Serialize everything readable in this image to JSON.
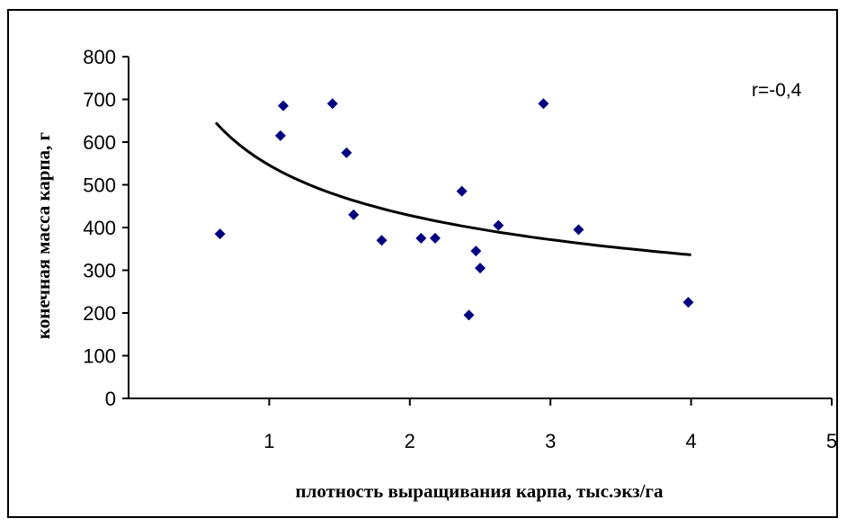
{
  "chart_data": {
    "type": "scatter",
    "xlabel": "плотность выращивания карпа, тыс.экз/га",
    "ylabel": "конечная масса карпа, г",
    "xlim": [
      0,
      5
    ],
    "ylim": [
      0,
      800
    ],
    "x_ticks": [
      1,
      2,
      3,
      4,
      5
    ],
    "y_ticks": [
      0,
      100,
      200,
      300,
      400,
      500,
      600,
      700,
      800
    ],
    "grid": false,
    "annotation": "r=-0,4",
    "marker_color": "#000080",
    "series": [
      {
        "points": [
          {
            "x": 0.65,
            "y": 385
          },
          {
            "x": 1.08,
            "y": 615
          },
          {
            "x": 1.1,
            "y": 685
          },
          {
            "x": 1.45,
            "y": 690
          },
          {
            "x": 1.55,
            "y": 575
          },
          {
            "x": 1.6,
            "y": 430
          },
          {
            "x": 1.8,
            "y": 370
          },
          {
            "x": 2.08,
            "y": 375
          },
          {
            "x": 2.18,
            "y": 375
          },
          {
            "x": 2.37,
            "y": 485
          },
          {
            "x": 2.42,
            "y": 195
          },
          {
            "x": 2.47,
            "y": 345
          },
          {
            "x": 2.5,
            "y": 305
          },
          {
            "x": 2.63,
            "y": 405
          },
          {
            "x": 2.95,
            "y": 690
          },
          {
            "x": 3.2,
            "y": 395
          },
          {
            "x": 3.98,
            "y": 225
          }
        ]
      }
    ],
    "trendline": {
      "type": "power",
      "x_from": 0.62,
      "x_to": 4.0,
      "a": 546,
      "b": -0.35,
      "color": "#000000"
    }
  }
}
